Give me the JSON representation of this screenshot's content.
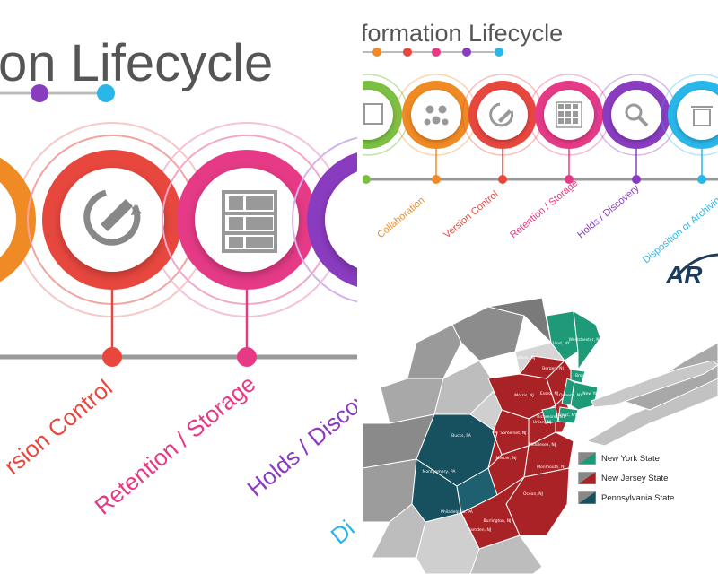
{
  "left_panel": {
    "title": "on Lifecycle",
    "labels": [
      "rsion Control",
      "Retention / Storage",
      "Holds / Discove",
      "Di"
    ],
    "colors": {
      "orange": "#f08a24",
      "red": "#e8473e",
      "pink": "#e63a86",
      "purple": "#8a3cc0",
      "blue": "#29b6e8"
    }
  },
  "top_right_panel": {
    "title": "formation Lifecycle",
    "stages": [
      {
        "label": "Collaboration",
        "color": "#f08a24",
        "icon": "people-gears-icon"
      },
      {
        "label": "Version Control",
        "color": "#e8473e",
        "icon": "edit-refresh-icon"
      },
      {
        "label": "Retention / Storage",
        "color": "#e63a86",
        "icon": "shelves-icon"
      },
      {
        "label": "Holds / Discovery",
        "color": "#8a3cc0",
        "icon": "magnifier-icon"
      },
      {
        "label": "Disposition or Archiving",
        "color": "#29b6e8",
        "icon": "trash-icon"
      }
    ],
    "logo_text": "AR"
  },
  "map_panel": {
    "regions_ny": [
      "Rockland, NY",
      "Westchester, NY",
      "Bronx, NY",
      "New York, NY",
      "Queens, NY",
      "Kings, NY",
      "Richmond, NY"
    ],
    "regions_nj": [
      "Hudson, NJ",
      "Bergen, NJ",
      "Morris, NJ",
      "Essex, NJ",
      "Union, NJ",
      "Somerset, NJ",
      "Middlesex, NJ",
      "Mercer, NJ",
      "Monmouth, NJ",
      "Ocean, NJ",
      "Burlington, NJ",
      "Camden, NJ"
    ],
    "regions_pa": [
      "Bucks, PA",
      "Montgomery, PA",
      "Philadelphia, PA"
    ],
    "legend": [
      {
        "label": "New York State",
        "color": "#1e9a78"
      },
      {
        "label": "New Jersey State",
        "color": "#a82226"
      },
      {
        "label": "Pennsylvania State",
        "color": "#17505f"
      }
    ]
  }
}
